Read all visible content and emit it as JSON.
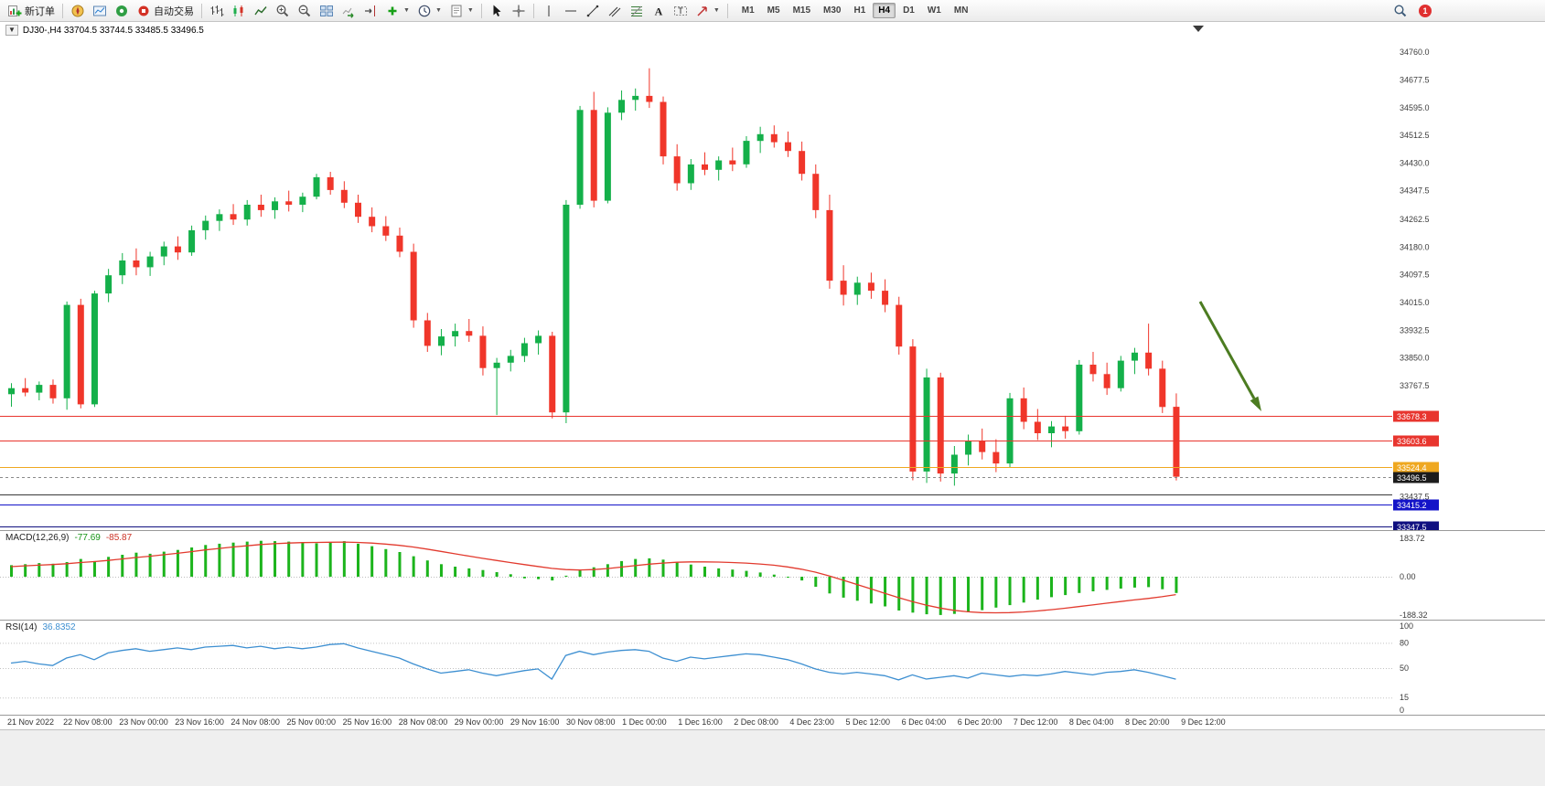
{
  "toolbar": {
    "new_order_label": "新订单",
    "autotrading_label": "自动交易",
    "timeframes": [
      {
        "label": "M1",
        "active": false
      },
      {
        "label": "M5",
        "active": false
      },
      {
        "label": "M15",
        "active": false
      },
      {
        "label": "M30",
        "active": false
      },
      {
        "label": "H1",
        "active": false
      },
      {
        "label": "H4",
        "active": true
      },
      {
        "label": "D1",
        "active": false
      },
      {
        "label": "W1",
        "active": false
      },
      {
        "label": "MN",
        "active": false
      }
    ],
    "notification_count": "1"
  },
  "chart": {
    "symbol": "DJ30-",
    "period": "H4",
    "symbol_line": "DJ30-,H4 33704.5 33744.5 33485.5 33496.5",
    "open": "33704.5",
    "high": "33744.5",
    "low": "33485.5",
    "close": "33496.5"
  },
  "chart_data": {
    "type": "candlestick",
    "symbol": "DJ30-",
    "timeframe": "H4",
    "colors": {
      "bull": "#14b04a",
      "bear": "#f0362a",
      "macd_hist": "#1cb41c",
      "macd_signal": "#e23a2e",
      "rsi_line": "#3d8fd1",
      "arrow": "#4c7c21"
    },
    "candles": [
      [
        33742,
        33775,
        33705,
        33760
      ],
      [
        33760,
        33790,
        33736,
        33747
      ],
      [
        33747,
        33780,
        33724,
        33770
      ],
      [
        33770,
        33786,
        33714,
        33730
      ],
      [
        33730,
        34018,
        33696,
        34008
      ],
      [
        34008,
        34026,
        33700,
        33712
      ],
      [
        33712,
        34050,
        33704,
        34042
      ],
      [
        34042,
        34115,
        34016,
        34096
      ],
      [
        34096,
        34162,
        34070,
        34140
      ],
      [
        34140,
        34176,
        34096,
        34120
      ],
      [
        34120,
        34166,
        34094,
        34152
      ],
      [
        34152,
        34196,
        34126,
        34182
      ],
      [
        34182,
        34212,
        34142,
        34164
      ],
      [
        34164,
        34244,
        34154,
        34230
      ],
      [
        34230,
        34274,
        34202,
        34258
      ],
      [
        34258,
        34292,
        34228,
        34278
      ],
      [
        34278,
        34308,
        34246,
        34262
      ],
      [
        34262,
        34320,
        34244,
        34306
      ],
      [
        34306,
        34336,
        34270,
        34290
      ],
      [
        34290,
        34328,
        34264,
        34316
      ],
      [
        34316,
        34348,
        34286,
        34306
      ],
      [
        34306,
        34342,
        34284,
        34330
      ],
      [
        34330,
        34398,
        34322,
        34388
      ],
      [
        34388,
        34404,
        34336,
        34350
      ],
      [
        34350,
        34376,
        34296,
        34312
      ],
      [
        34312,
        34336,
        34252,
        34270
      ],
      [
        34270,
        34298,
        34224,
        34242
      ],
      [
        34242,
        34272,
        34198,
        34214
      ],
      [
        34214,
        34238,
        34150,
        34166
      ],
      [
        34166,
        34190,
        33940,
        33962
      ],
      [
        33962,
        33984,
        33868,
        33886
      ],
      [
        33886,
        33936,
        33858,
        33914
      ],
      [
        33914,
        33952,
        33884,
        33930
      ],
      [
        33930,
        33966,
        33898,
        33916
      ],
      [
        33916,
        33944,
        33798,
        33820
      ],
      [
        33820,
        33850,
        33680,
        33836
      ],
      [
        33836,
        33874,
        33810,
        33856
      ],
      [
        33856,
        33910,
        33838,
        33894
      ],
      [
        33894,
        33932,
        33860,
        33916
      ],
      [
        33916,
        33928,
        33670,
        33688
      ],
      [
        33688,
        34320,
        33656,
        34306
      ],
      [
        34306,
        34600,
        34294,
        34588
      ],
      [
        34588,
        34642,
        34298,
        34318
      ],
      [
        34318,
        34596,
        34310,
        34580
      ],
      [
        34580,
        34646,
        34558,
        34618
      ],
      [
        34618,
        34652,
        34586,
        34630
      ],
      [
        34630,
        34712,
        34594,
        34612
      ],
      [
        34612,
        34628,
        34426,
        34450
      ],
      [
        34450,
        34486,
        34348,
        34370
      ],
      [
        34370,
        34442,
        34350,
        34426
      ],
      [
        34426,
        34462,
        34394,
        34410
      ],
      [
        34410,
        34450,
        34378,
        34438
      ],
      [
        34438,
        34476,
        34406,
        34426
      ],
      [
        34426,
        34510,
        34416,
        34496
      ],
      [
        34496,
        34538,
        34460,
        34516
      ],
      [
        34516,
        34542,
        34476,
        34492
      ],
      [
        34492,
        34524,
        34448,
        34466
      ],
      [
        34466,
        34494,
        34378,
        34398
      ],
      [
        34398,
        34426,
        34266,
        34290
      ],
      [
        34290,
        34336,
        34056,
        34080
      ],
      [
        34080,
        34126,
        34006,
        34038
      ],
      [
        34038,
        34092,
        34008,
        34074
      ],
      [
        34074,
        34104,
        34026,
        34050
      ],
      [
        34050,
        34084,
        33986,
        34008
      ],
      [
        34008,
        34032,
        33860,
        33884
      ],
      [
        33884,
        33906,
        33486,
        33512
      ],
      [
        33512,
        33818,
        33478,
        33792
      ],
      [
        33792,
        33806,
        33482,
        33506
      ],
      [
        33506,
        33588,
        33470,
        33562
      ],
      [
        33562,
        33622,
        33530,
        33604
      ],
      [
        33604,
        33640,
        33548,
        33570
      ],
      [
        33570,
        33608,
        33510,
        33536
      ],
      [
        33536,
        33746,
        33524,
        33730
      ],
      [
        33730,
        33762,
        33638,
        33660
      ],
      [
        33660,
        33698,
        33606,
        33626
      ],
      [
        33626,
        33662,
        33584,
        33646
      ],
      [
        33646,
        33678,
        33610,
        33632
      ],
      [
        33632,
        33844,
        33622,
        33830
      ],
      [
        33830,
        33868,
        33780,
        33802
      ],
      [
        33802,
        33836,
        33740,
        33760
      ],
      [
        33760,
        33856,
        33750,
        33842
      ],
      [
        33842,
        33880,
        33802,
        33866
      ],
      [
        33866,
        33952,
        33798,
        33818
      ],
      [
        33818,
        33842,
        33686,
        33704
      ],
      [
        33704.5,
        33744.5,
        33485.5,
        33496.5
      ]
    ],
    "price_axis_labels": [
      "34760.0",
      "34677.5",
      "34595.0",
      "34512.5",
      "34430.0",
      "34347.5",
      "34262.5",
      "34180.0",
      "34097.5",
      "34015.0",
      "33932.5",
      "33850.0",
      "33767.5",
      "33437.5"
    ],
    "hlines": [
      {
        "price": 33678.3,
        "color": "#e8352e",
        "tag": "33678.3"
      },
      {
        "price": 33603.6,
        "color": "#e8352e",
        "tag": "33603.6"
      },
      {
        "price": 33524.4,
        "color": "#efa820",
        "tag": "33524.4"
      },
      {
        "price": 33496.5,
        "color": "#8a8a8a",
        "dash": "3,3",
        "tag": "33496.5",
        "tag_color": "#1c1c1c",
        "name": "bid-price-line"
      },
      {
        "price": 33445.0,
        "color": "#3a3a3a"
      },
      {
        "price": 33415.2,
        "color": "#1414c8",
        "tag": "33415.2"
      },
      {
        "price": 33347.5,
        "color": "#101080",
        "tag": "33347.5"
      }
    ],
    "macd": {
      "label": "MACD(12,26,9)",
      "value": "-77.69",
      "signal_value": "-85.87",
      "axis": [
        "183.72",
        "0.00",
        "-188.32"
      ],
      "histogram": [
        55,
        60,
        65,
        62,
        70,
        85,
        75,
        95,
        105,
        115,
        110,
        120,
        128,
        140,
        152,
        158,
        163,
        168,
        172,
        170,
        168,
        164,
        160,
        166,
        170,
        158,
        146,
        132,
        118,
        98,
        78,
        60,
        48,
        40,
        32,
        22,
        12,
        -8,
        -12,
        -18,
        5,
        30,
        45,
        60,
        75,
        85,
        88,
        82,
        70,
        58,
        48,
        40,
        34,
        28,
        20,
        10,
        -2,
        -18,
        -48,
        -80,
        -100,
        -115,
        -128,
        -142,
        -162,
        -172,
        -180,
        -183.5,
        -178,
        -170,
        -160,
        -148,
        -136,
        -124,
        -110,
        -98,
        -88,
        -78,
        -70,
        -63,
        -57,
        -52,
        -50,
        -60,
        -77.69
      ],
      "signal": [
        48,
        52,
        55,
        58,
        62,
        68,
        72,
        78,
        85,
        92,
        98,
        105,
        112,
        120,
        128,
        135,
        142,
        148,
        154,
        158,
        161,
        163,
        164,
        165,
        166,
        164,
        161,
        156,
        150,
        142,
        132,
        121,
        110,
        99,
        88,
        78,
        68,
        58,
        49,
        40,
        34,
        32,
        34,
        39,
        46,
        53,
        60,
        65,
        69,
        71,
        71,
        70,
        68,
        65,
        61,
        55,
        47,
        36,
        22,
        4,
        -16,
        -37,
        -58,
        -79,
        -100,
        -119,
        -136,
        -150,
        -161,
        -168,
        -172,
        -173,
        -172,
        -169,
        -164,
        -158,
        -151,
        -143,
        -135,
        -127,
        -119,
        -111,
        -104,
        -96,
        -85.87
      ]
    },
    "rsi": {
      "label": "RSI(14)",
      "value": "36.8352",
      "axis": [
        "100",
        "80",
        "50",
        "15",
        "0"
      ],
      "levels": [
        80,
        50,
        15
      ],
      "values": [
        56,
        58,
        55,
        53,
        62,
        66,
        60,
        68,
        71,
        73,
        70,
        72,
        74,
        72,
        75,
        76,
        77,
        74,
        76,
        73,
        75,
        73,
        75,
        78,
        79,
        74,
        70,
        66,
        62,
        55,
        49,
        44,
        46,
        48,
        44,
        41,
        44,
        47,
        49,
        37,
        65,
        70,
        66,
        69,
        71,
        72,
        70,
        62,
        58,
        63,
        61,
        63,
        65,
        67,
        66,
        63,
        60,
        55,
        49,
        45,
        43,
        45,
        43,
        41,
        36,
        42,
        37,
        39,
        41,
        38,
        44,
        42,
        40,
        42,
        41,
        43,
        46,
        44,
        42,
        45,
        46,
        48,
        45,
        41,
        36.84
      ]
    },
    "time_labels": [
      "21 Nov 2022",
      "22 Nov 08:00",
      "23 Nov 00:00",
      "23 Nov 16:00",
      "24 Nov 08:00",
      "25 Nov 00:00",
      "25 Nov 16:00",
      "28 Nov 08:00",
      "29 Nov 00:00",
      "29 Nov 16:00",
      "30 Nov 08:00",
      "1 Dec 00:00",
      "1 Dec 16:00",
      "2 Dec 08:00",
      "4 Dec 23:00",
      "5 Dec 12:00",
      "6 Dec 04:00",
      "6 Dec 20:00",
      "7 Dec 12:00",
      "8 Dec 04:00",
      "8 Dec 20:00",
      "9 Dec 12:00"
    ],
    "arrow": {
      "color": "#4c7c21"
    }
  }
}
